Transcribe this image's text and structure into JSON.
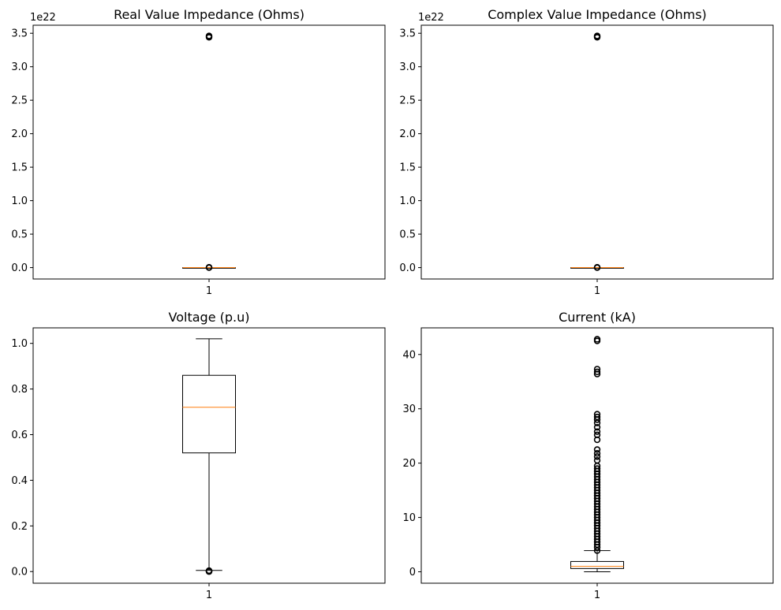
{
  "chart_data": [
    {
      "type": "boxplot",
      "title": "Real Value Impedance (Ohms)",
      "xlabel": "",
      "ylabel": "",
      "x_tick_labels": [
        "1"
      ],
      "y_offset_label": "1e22",
      "y_tick_labels": [
        "0.0",
        "0.5",
        "1.0",
        "1.5",
        "2.0",
        "2.5",
        "3.0",
        "3.5"
      ],
      "y_tick_values": [
        0.0,
        0.5,
        1.0,
        1.5,
        2.0,
        2.5,
        3.0,
        3.5
      ],
      "ylim": [
        -0.17,
        3.62
      ],
      "box": {
        "whisker_low": 0.0,
        "q1": 0.0,
        "median": 0.0,
        "q3": 0.0,
        "whisker_high": 0.0
      },
      "outliers": [
        0.0,
        0.002,
        0.004,
        3.44,
        3.45,
        3.46
      ]
    },
    {
      "type": "boxplot",
      "title": "Complex Value Impedance (Ohms)",
      "xlabel": "",
      "ylabel": "",
      "x_tick_labels": [
        "1"
      ],
      "y_offset_label": "1e22",
      "y_tick_labels": [
        "0.0",
        "0.5",
        "1.0",
        "1.5",
        "2.0",
        "2.5",
        "3.0",
        "3.5"
      ],
      "y_tick_values": [
        0.0,
        0.5,
        1.0,
        1.5,
        2.0,
        2.5,
        3.0,
        3.5
      ],
      "ylim": [
        -0.17,
        3.62
      ],
      "box": {
        "whisker_low": 0.0,
        "q1": 0.0,
        "median": 0.0,
        "q3": 0.0,
        "whisker_high": 0.0
      },
      "outliers": [
        0.0,
        0.002,
        0.004,
        3.44,
        3.45,
        3.46
      ]
    },
    {
      "type": "boxplot",
      "title": "Voltage (p.u)",
      "xlabel": "",
      "ylabel": "",
      "x_tick_labels": [
        "1"
      ],
      "y_offset_label": "",
      "y_tick_labels": [
        "0.0",
        "0.2",
        "0.4",
        "0.6",
        "0.8",
        "1.0"
      ],
      "y_tick_values": [
        0.0,
        0.2,
        0.4,
        0.6,
        0.8,
        1.0
      ],
      "ylim": [
        -0.051,
        1.068
      ],
      "box": {
        "whisker_low": 0.005,
        "q1": 0.52,
        "median": 0.72,
        "q3": 0.86,
        "whisker_high": 1.02
      },
      "outliers": [
        0.0,
        0.001,
        0.002,
        0.003,
        0.004
      ]
    },
    {
      "type": "boxplot",
      "title": "Current (kA)",
      "xlabel": "",
      "ylabel": "",
      "x_tick_labels": [
        "1"
      ],
      "y_offset_label": "",
      "y_tick_labels": [
        "0",
        "10",
        "20",
        "30",
        "40"
      ],
      "y_tick_values": [
        0,
        10,
        20,
        30,
        40
      ],
      "ylim": [
        -2.1,
        44.9
      ],
      "box": {
        "whisker_low": 0.0,
        "q1": 0.6,
        "median": 1.0,
        "q3": 1.9,
        "whisker_high": 3.9
      },
      "outliers": [
        3.9,
        4.5,
        5.0,
        5.5,
        6.0,
        6.5,
        7.0,
        7.5,
        8.0,
        8.5,
        9.0,
        9.5,
        10.0,
        10.5,
        11.0,
        11.5,
        12.0,
        12.5,
        13.0,
        13.5,
        14.0,
        14.5,
        15.0,
        15.5,
        16.0,
        16.5,
        17.0,
        17.5,
        18.0,
        18.5,
        19.0,
        19.5,
        20.5,
        21.2,
        21.8,
        22.5,
        24.3,
        25.2,
        25.8,
        26.6,
        27.4,
        28.0,
        28.5,
        29.0,
        36.4,
        36.8,
        37.3,
        42.5,
        42.8
      ]
    }
  ],
  "colors": {
    "box_line": "#000000",
    "median": "#ff7f0e",
    "axes": "#000000",
    "background": "#ffffff"
  }
}
